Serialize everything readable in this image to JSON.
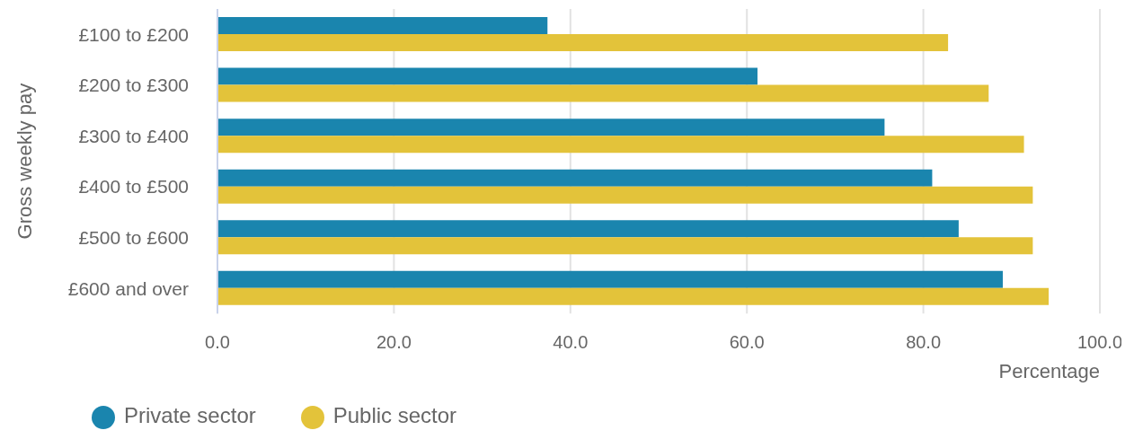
{
  "chart_data": {
    "type": "bar",
    "orientation": "horizontal",
    "ylabel": "Gross weekly pay",
    "xlabel": "Percentage",
    "categories": [
      "£100 to £200",
      "£200 to £300",
      "£300 to £400",
      "£400 to £500",
      "£500 to £600",
      "£600 and over"
    ],
    "series": [
      {
        "name": "Private sector",
        "color": "#1a85ae",
        "values": [
          37.4,
          61.2,
          75.6,
          81.0,
          84.0,
          89.0
        ]
      },
      {
        "name": "Public sector",
        "color": "#e3c33a",
        "values": [
          82.8,
          87.4,
          91.4,
          92.4,
          92.4,
          94.2
        ]
      }
    ],
    "xlim": [
      0,
      100
    ],
    "xticks": [
      {
        "value": 0,
        "label": "0.0"
      },
      {
        "value": 20,
        "label": "20.0"
      },
      {
        "value": 40,
        "label": "40.0"
      },
      {
        "value": 60,
        "label": "60.0"
      },
      {
        "value": 80,
        "label": "80.0"
      },
      {
        "value": 100,
        "label": "100.0"
      }
    ],
    "grid": "x",
    "legend": "bottom left"
  }
}
